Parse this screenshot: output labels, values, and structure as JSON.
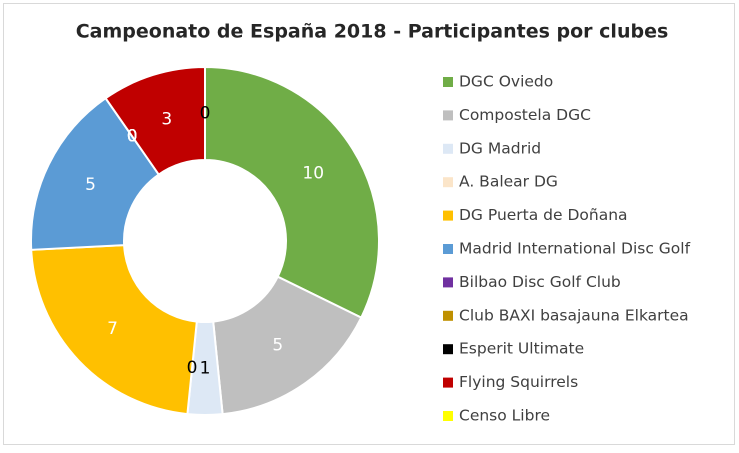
{
  "chart_data": {
    "type": "donut",
    "title": "Campeonato de España 2018 - Participantes por clubes",
    "categories": [
      "DGC Oviedo",
      "Compostela DGC",
      "DG Madrid",
      "A. Balear DG",
      "DG Puerta de Doñana",
      "Madrid International Disc Golf",
      "Bilbao Disc Golf Club",
      "Club BAXI basajauna Elkartea",
      "Esperit Ultimate",
      "Flying Squirrels",
      "Censo Libre"
    ],
    "values": [
      10,
      5,
      1,
      0,
      7,
      5,
      0,
      0,
      0,
      3,
      0
    ],
    "colors": [
      "#70ad47",
      "#bfbfbf",
      "#dde8f5",
      "#fbe5c9",
      "#ffc000",
      "#5b9bd5",
      "#7030a0",
      "#bf9000",
      "#000000",
      "#c00000",
      "#ffff00"
    ],
    "legend": "right"
  }
}
